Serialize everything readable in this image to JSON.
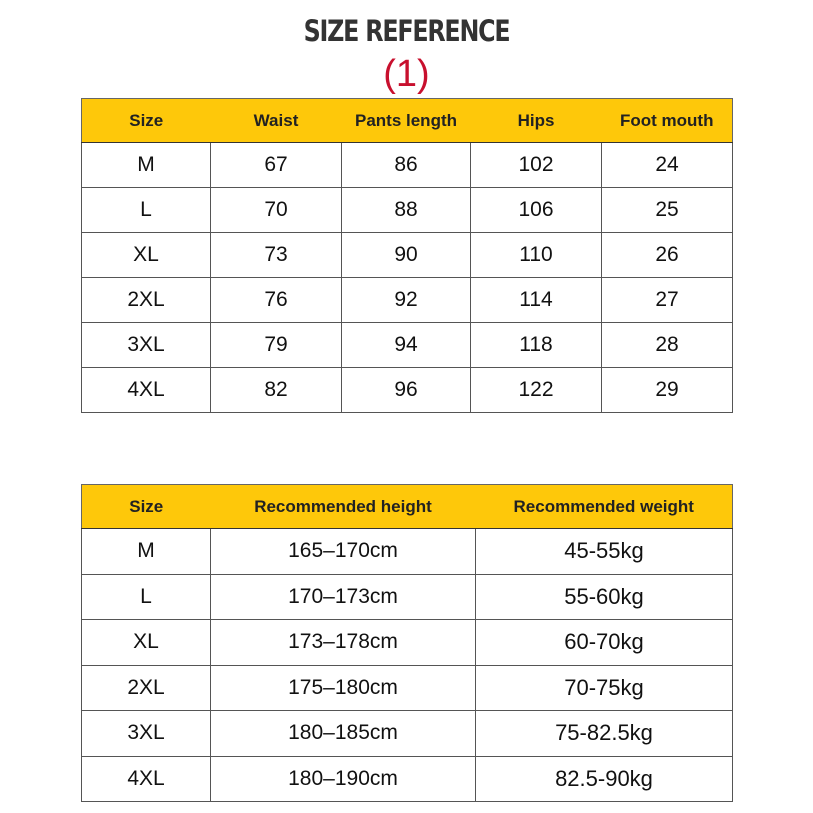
{
  "title": "SIZE REFERENCE",
  "subtitle": "(1)",
  "colors": {
    "header_bg": "#fec80a",
    "subtitle": "#c8102e"
  },
  "size_table": {
    "headers": [
      "Size",
      "Waist",
      "Pants length",
      "Hips",
      "Foot mouth"
    ],
    "rows": [
      [
        "M",
        "67",
        "86",
        "102",
        "24"
      ],
      [
        "L",
        "70",
        "88",
        "106",
        "25"
      ],
      [
        "XL",
        "73",
        "90",
        "110",
        "26"
      ],
      [
        "2XL",
        "76",
        "92",
        "114",
        "27"
      ],
      [
        "3XL",
        "79",
        "94",
        "118",
        "28"
      ],
      [
        "4XL",
        "82",
        "96",
        "122",
        "29"
      ]
    ]
  },
  "recommend_table": {
    "headers": [
      "Size",
      "Recommended height",
      "Recommended weight"
    ],
    "rows": [
      [
        "M",
        "165–170cm",
        "45-55kg"
      ],
      [
        "L",
        "170–173cm",
        "55-60kg"
      ],
      [
        "XL",
        "173–178cm",
        "60-70kg"
      ],
      [
        "2XL",
        "175–180cm",
        "70-75kg"
      ],
      [
        "3XL",
        "180–185cm",
        "75-82.5kg"
      ],
      [
        "4XL",
        "180–190cm",
        "82.5-90kg"
      ]
    ]
  }
}
